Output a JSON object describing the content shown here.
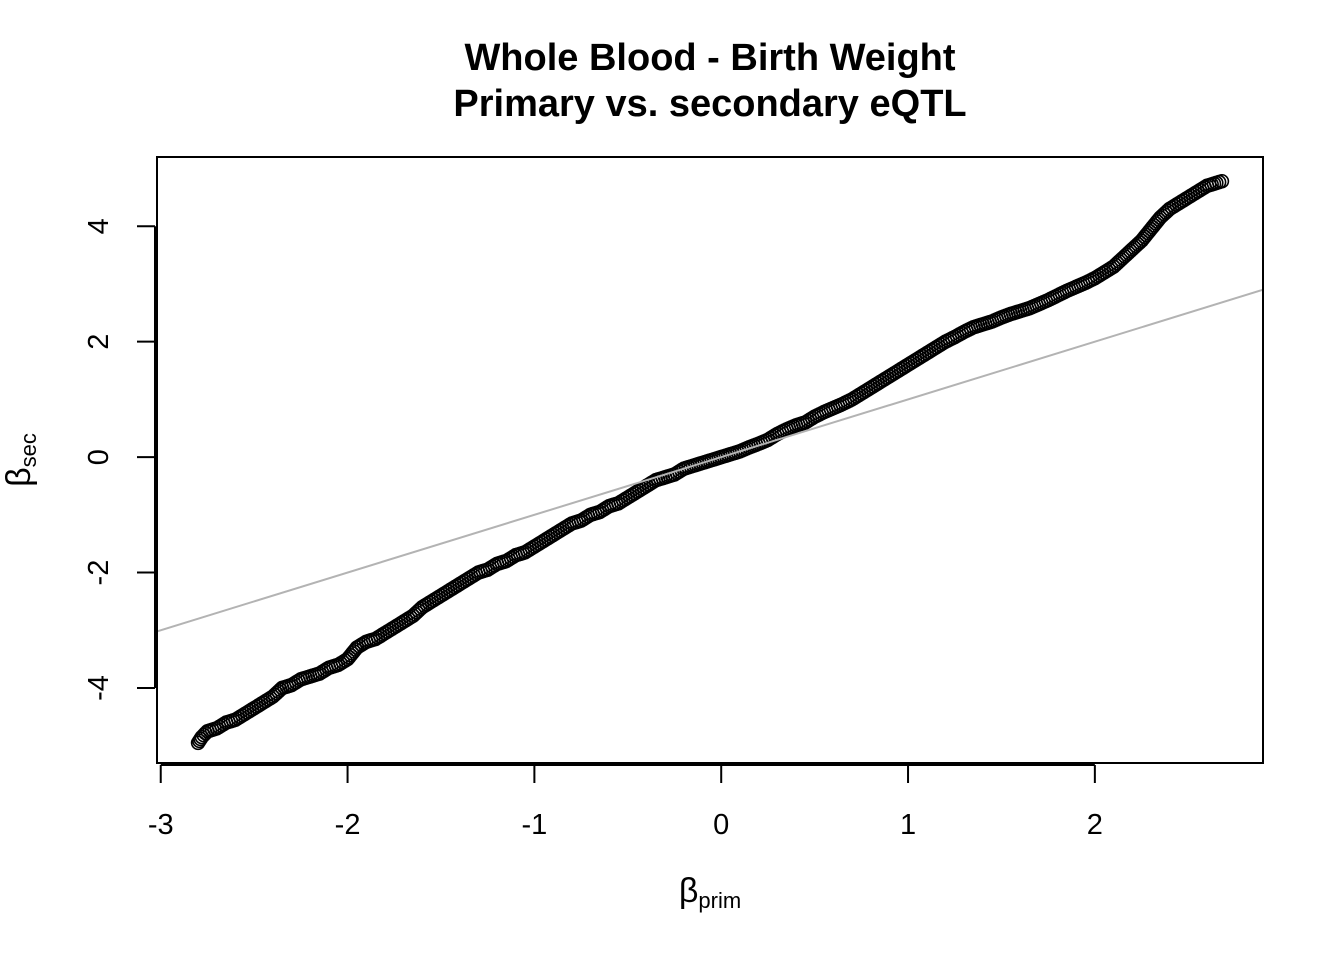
{
  "chart_data": {
    "type": "scatter",
    "title": "Whole Blood - Birth Weight",
    "subtitle": "Primary vs. secondary eQTL",
    "xlabel": {
      "symbol": "β",
      "subscript": "prim"
    },
    "ylabel": {
      "symbol": "β",
      "subscript": "sec"
    },
    "xlim": [
      -3.02,
      2.9
    ],
    "ylim": [
      -5.3,
      5.2
    ],
    "x_ticks": [
      -3,
      -2,
      -1,
      0,
      1,
      2
    ],
    "x_tick_labels": [
      "-3",
      "-2",
      "-1",
      "0",
      "1",
      "2"
    ],
    "y_ticks": [
      -4,
      -2,
      0,
      2,
      4
    ],
    "y_tick_labels": [
      "-4",
      "-2",
      "0",
      "2",
      "4"
    ],
    "grid": false,
    "legend": "none",
    "marker": "open-circle",
    "marker_color": "#000000",
    "reference_line": {
      "slope": 1,
      "intercept": 0,
      "color": "#b3b3b3"
    },
    "series": [
      {
        "x": [
          -2.8,
          -2.78,
          -2.75,
          -2.7,
          -2.65,
          -2.6,
          -2.55,
          -2.5,
          -2.45,
          -2.4,
          -2.35,
          -2.3,
          -2.25,
          -2.2,
          -2.15,
          -2.1,
          -2.05,
          -2.0,
          -1.95,
          -1.9,
          -1.85,
          -1.8,
          -1.75,
          -1.7,
          -1.65,
          -1.6,
          -1.55,
          -1.5,
          -1.45,
          -1.4,
          -1.35,
          -1.3,
          -1.25,
          -1.2,
          -1.15,
          -1.1,
          -1.05,
          -1.0,
          -0.95,
          -0.9,
          -0.85,
          -0.8,
          -0.75,
          -0.7,
          -0.65,
          -0.6,
          -0.55,
          -0.5,
          -0.45,
          -0.4,
          -0.35,
          -0.3,
          -0.25,
          -0.2,
          -0.15,
          -0.1,
          -0.05,
          0.0,
          0.05,
          0.1,
          0.15,
          0.2,
          0.25,
          0.3,
          0.35,
          0.4,
          0.45,
          0.5,
          0.55,
          0.6,
          0.65,
          0.7,
          0.75,
          0.8,
          0.85,
          0.9,
          0.95,
          1.0,
          1.05,
          1.1,
          1.15,
          1.2,
          1.25,
          1.3,
          1.35,
          1.4,
          1.45,
          1.5,
          1.55,
          1.6,
          1.65,
          1.7,
          1.75,
          1.8,
          1.85,
          1.9,
          1.95,
          2.0,
          2.05,
          2.1,
          2.15,
          2.2,
          2.25,
          2.3,
          2.35,
          2.4,
          2.45,
          2.5,
          2.55,
          2.6,
          2.65,
          2.68
        ],
        "y": [
          -4.95,
          -4.85,
          -4.75,
          -4.7,
          -4.6,
          -4.55,
          -4.45,
          -4.35,
          -4.25,
          -4.15,
          -4.0,
          -3.95,
          -3.85,
          -3.8,
          -3.75,
          -3.65,
          -3.6,
          -3.5,
          -3.3,
          -3.2,
          -3.15,
          -3.05,
          -2.95,
          -2.85,
          -2.75,
          -2.6,
          -2.5,
          -2.4,
          -2.3,
          -2.2,
          -2.1,
          -2.0,
          -1.95,
          -1.85,
          -1.8,
          -1.7,
          -1.65,
          -1.55,
          -1.45,
          -1.35,
          -1.25,
          -1.15,
          -1.1,
          -1.0,
          -0.95,
          -0.85,
          -0.8,
          -0.7,
          -0.6,
          -0.5,
          -0.4,
          -0.35,
          -0.3,
          -0.2,
          -0.15,
          -0.1,
          -0.05,
          0.0,
          0.05,
          0.1,
          0.17,
          0.23,
          0.3,
          0.4,
          0.48,
          0.55,
          0.6,
          0.7,
          0.78,
          0.85,
          0.92,
          1.0,
          1.1,
          1.2,
          1.3,
          1.4,
          1.5,
          1.6,
          1.7,
          1.8,
          1.9,
          2.0,
          2.08,
          2.17,
          2.25,
          2.3,
          2.35,
          2.42,
          2.48,
          2.53,
          2.58,
          2.65,
          2.72,
          2.8,
          2.88,
          2.95,
          3.02,
          3.1,
          3.2,
          3.3,
          3.45,
          3.6,
          3.75,
          3.95,
          4.15,
          4.3,
          4.4,
          4.5,
          4.6,
          4.7,
          4.75,
          4.78
        ]
      }
    ]
  }
}
